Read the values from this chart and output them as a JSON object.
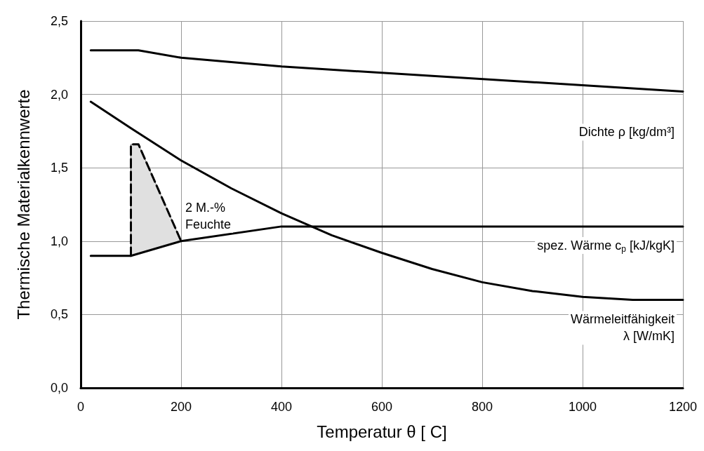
{
  "chart_data": {
    "type": "line",
    "xlabel": "Temperatur θ [ C]",
    "ylabel": "Thermische Materialkennwerte",
    "xlim": [
      0,
      1200
    ],
    "xticks": [
      0,
      200,
      400,
      600,
      800,
      1000,
      1200
    ],
    "ylim": [
      0,
      2.5
    ],
    "yticks": [
      {
        "value": 0,
        "label": "0,0"
      },
      {
        "value": 0.5,
        "label": "0,5"
      },
      {
        "value": 1,
        "label": "1,0"
      },
      {
        "value": 1.5,
        "label": "1,5"
      },
      {
        "value": 2,
        "label": "2,0"
      },
      {
        "value": 2.5,
        "label": "2,5"
      }
    ],
    "grid": true,
    "series": [
      {
        "type": "area",
        "color": "#e0e0e0",
        "x": [
          100,
          115,
          200
        ],
        "lower": [
          0.9,
          0.915,
          1.0
        ],
        "upper": [
          1.66,
          1.66,
          1.0
        ],
        "values": [
          null,
          null,
          null
        ]
      },
      {
        "name": "Dichte ρ [kg/dm³]",
        "color": "#000000",
        "x": [
          20,
          115,
          200,
          400,
          1200
        ],
        "values": [
          2.3,
          2.3,
          2.25,
          2.19,
          2.02
        ]
      },
      {
        "name": "spez. Wärme c$_{p}$ [kJ/kgK]",
        "color": "#000000",
        "x": [
          20,
          100,
          200,
          400,
          1200
        ],
        "values": [
          0.9,
          0.9,
          1.0,
          1.1,
          1.1
        ]
      },
      {
        "name": "Wärmeleitfähigkeit\nλ [W/mK]",
        "color": "#000000",
        "x": [
          20,
          100,
          200,
          300,
          400,
          500,
          600,
          700,
          800,
          900,
          1000,
          1100,
          1200
        ],
        "values": [
          1.95,
          1.77,
          1.55,
          1.36,
          1.19,
          1.04,
          0.92,
          0.81,
          0.72,
          0.66,
          0.62,
          0.6,
          0.6
        ]
      },
      {
        "name": "2 M.-%\nFeuchte",
        "color": "#000000",
        "line_style": "dashed",
        "x": [
          100,
          100,
          115,
          200
        ],
        "values": [
          0.9,
          1.66,
          1.66,
          1.0
        ]
      }
    ]
  }
}
